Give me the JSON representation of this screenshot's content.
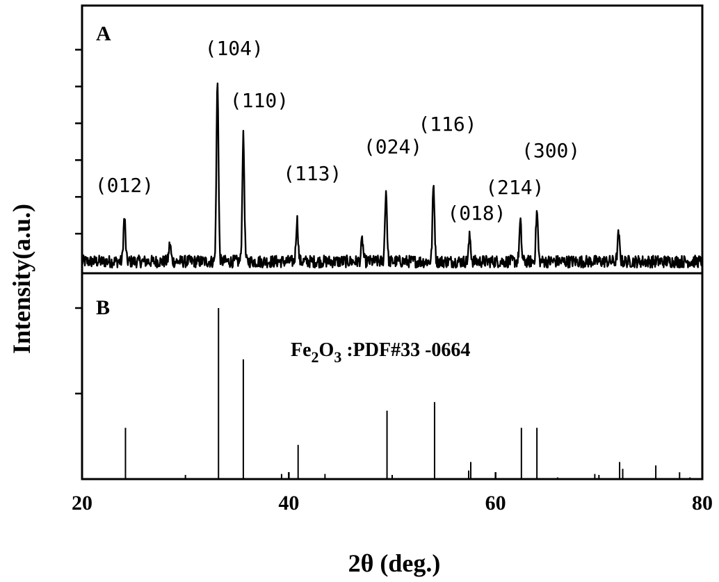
{
  "chart_data": {
    "type": "line",
    "xlabel": "2θ (deg.)",
    "ylabel": "Intensity(a.u.)",
    "xlim": [
      20,
      80
    ],
    "x_ticks": [
      "20",
      "40",
      "60",
      "80"
    ],
    "panels": [
      {
        "id": "A",
        "label": "A",
        "kind": "measured-pattern",
        "peaks": [
          {
            "x": 24.1,
            "y": 0.27,
            "label": "(012)"
          },
          {
            "x": 33.1,
            "y": 1.0,
            "label": "(104)"
          },
          {
            "x": 35.6,
            "y": 0.7,
            "label": "(110)"
          },
          {
            "x": 40.8,
            "y": 0.26,
            "label": "(113)"
          },
          {
            "x": 49.4,
            "y": 0.41,
            "label": "(024)"
          },
          {
            "x": 54.0,
            "y": 0.44,
            "label": "(116)"
          },
          {
            "x": 57.5,
            "y": 0.17,
            "label": "(018)"
          },
          {
            "x": 62.4,
            "y": 0.24,
            "label": "(214)"
          },
          {
            "x": 64.0,
            "y": 0.3,
            "label": "(300)"
          }
        ],
        "minor_features": [
          {
            "x": 28.5,
            "y": 0.13
          },
          {
            "x": 47.1,
            "y": 0.15
          },
          {
            "x": 71.9,
            "y": 0.18
          }
        ],
        "background_level": 0.06
      },
      {
        "id": "B",
        "label": "B",
        "kind": "reference-sticks",
        "reference": "Fe2O3 :PDF#33 -0664",
        "reference_parts": {
          "el1": "Fe",
          "sub1": "2",
          "el2": "O",
          "sub2": "3",
          "rest": " :PDF#33 -0664"
        },
        "sticks": [
          {
            "x": 24.2,
            "y": 0.3
          },
          {
            "x": 33.2,
            "y": 1.0
          },
          {
            "x": 35.6,
            "y": 0.7
          },
          {
            "x": 39.3,
            "y": 0.03
          },
          {
            "x": 40.9,
            "y": 0.2
          },
          {
            "x": 43.5,
            "y": 0.03
          },
          {
            "x": 49.5,
            "y": 0.4
          },
          {
            "x": 54.1,
            "y": 0.45
          },
          {
            "x": 57.4,
            "y": 0.05
          },
          {
            "x": 57.6,
            "y": 0.1
          },
          {
            "x": 62.5,
            "y": 0.3
          },
          {
            "x": 64.0,
            "y": 0.3
          },
          {
            "x": 66.0,
            "y": 0.01
          },
          {
            "x": 69.6,
            "y": 0.03
          },
          {
            "x": 72.0,
            "y": 0.1
          },
          {
            "x": 72.3,
            "y": 0.06
          },
          {
            "x": 75.5,
            "y": 0.08
          },
          {
            "x": 77.8,
            "y": 0.04
          },
          {
            "x": 78.8,
            "y": 0.01
          }
        ]
      }
    ],
    "grid": false,
    "legend": "none",
    "colors": {
      "line": "#000000",
      "background": "#ffffff"
    }
  }
}
